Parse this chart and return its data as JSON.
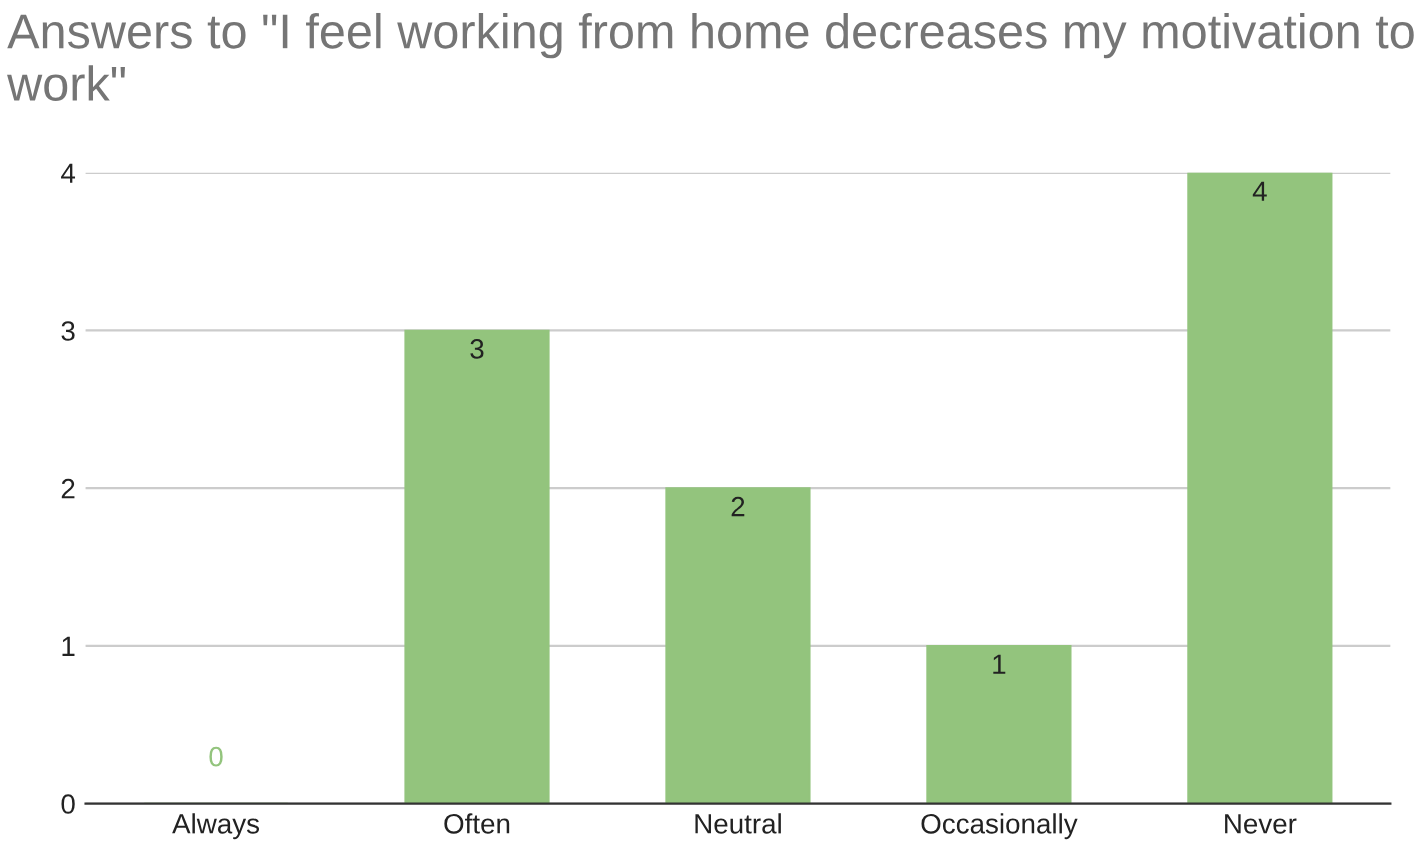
{
  "chart_data": {
    "type": "bar",
    "title": "Answers to \"I feel working from home decreases my motivation to work\"",
    "categories": [
      "Always",
      "Often",
      "Neutral",
      "Occasionally",
      "Never"
    ],
    "values": [
      0,
      3,
      2,
      1,
      4
    ],
    "color": "#93c47d",
    "ylim": [
      0,
      4
    ],
    "yticks": [
      0,
      1,
      2,
      3,
      4
    ],
    "grid": "y",
    "data_labels": true
  }
}
